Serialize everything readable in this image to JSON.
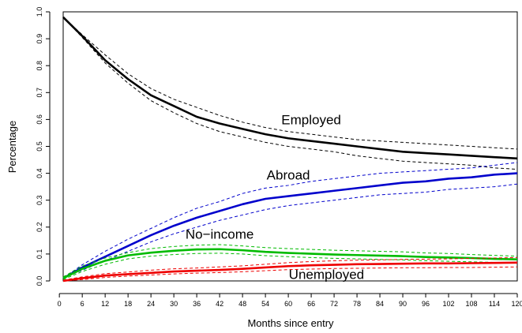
{
  "chart_data": {
    "type": "line",
    "title": "",
    "xlabel": "Months since entry",
    "ylabel": "Percentage",
    "xlim": [
      1,
      120
    ],
    "ylim": [
      0,
      1
    ],
    "x_ticks": [
      0,
      6,
      12,
      18,
      24,
      30,
      36,
      42,
      48,
      54,
      60,
      66,
      72,
      78,
      84,
      90,
      96,
      102,
      108,
      114,
      120
    ],
    "y_ticks": [
      "0.0",
      "0.1",
      "0.2",
      "0.3",
      "0.4",
      "0.5",
      "0.6",
      "0.7",
      "0.8",
      "0.9",
      "1.0"
    ],
    "grid": false,
    "legend": "none",
    "series": [
      {
        "name": "Employed",
        "color": "#000000",
        "points": [
          [
            1,
            0.98
          ],
          [
            6,
            0.91
          ],
          [
            12,
            0.82
          ],
          [
            18,
            0.75
          ],
          [
            24,
            0.69
          ],
          [
            30,
            0.65
          ],
          [
            36,
            0.61
          ],
          [
            42,
            0.585
          ],
          [
            48,
            0.565
          ],
          [
            54,
            0.545
          ],
          [
            60,
            0.53
          ],
          [
            66,
            0.52
          ],
          [
            72,
            0.51
          ],
          [
            78,
            0.5
          ],
          [
            84,
            0.49
          ],
          [
            90,
            0.48
          ],
          [
            96,
            0.475
          ],
          [
            102,
            0.47
          ],
          [
            108,
            0.465
          ],
          [
            114,
            0.46
          ],
          [
            120,
            0.455
          ]
        ],
        "upper": [
          [
            1,
            0.98
          ],
          [
            6,
            0.915
          ],
          [
            12,
            0.84
          ],
          [
            18,
            0.77
          ],
          [
            24,
            0.715
          ],
          [
            30,
            0.675
          ],
          [
            36,
            0.645
          ],
          [
            42,
            0.615
          ],
          [
            48,
            0.59
          ],
          [
            54,
            0.57
          ],
          [
            60,
            0.555
          ],
          [
            66,
            0.545
          ],
          [
            72,
            0.535
          ],
          [
            78,
            0.525
          ],
          [
            84,
            0.52
          ],
          [
            90,
            0.515
          ],
          [
            96,
            0.51
          ],
          [
            102,
            0.505
          ],
          [
            108,
            0.5
          ],
          [
            114,
            0.495
          ],
          [
            120,
            0.49
          ]
        ],
        "lower": [
          [
            1,
            0.98
          ],
          [
            6,
            0.905
          ],
          [
            12,
            0.81
          ],
          [
            18,
            0.735
          ],
          [
            24,
            0.67
          ],
          [
            30,
            0.625
          ],
          [
            36,
            0.585
          ],
          [
            42,
            0.555
          ],
          [
            48,
            0.535
          ],
          [
            54,
            0.515
          ],
          [
            60,
            0.5
          ],
          [
            66,
            0.49
          ],
          [
            72,
            0.48
          ],
          [
            78,
            0.465
          ],
          [
            84,
            0.455
          ],
          [
            90,
            0.445
          ],
          [
            96,
            0.44
          ],
          [
            102,
            0.435
          ],
          [
            108,
            0.43
          ],
          [
            114,
            0.42
          ],
          [
            120,
            0.415
          ]
        ]
      },
      {
        "name": "Abroad",
        "color": "#0000cc",
        "points": [
          [
            1,
            0.01
          ],
          [
            6,
            0.05
          ],
          [
            12,
            0.09
          ],
          [
            18,
            0.13
          ],
          [
            24,
            0.17
          ],
          [
            30,
            0.205
          ],
          [
            36,
            0.235
          ],
          [
            42,
            0.26
          ],
          [
            48,
            0.285
          ],
          [
            54,
            0.305
          ],
          [
            60,
            0.315
          ],
          [
            66,
            0.325
          ],
          [
            72,
            0.335
          ],
          [
            78,
            0.345
          ],
          [
            84,
            0.355
          ],
          [
            90,
            0.365
          ],
          [
            96,
            0.37
          ],
          [
            102,
            0.38
          ],
          [
            108,
            0.385
          ],
          [
            114,
            0.395
          ],
          [
            120,
            0.4
          ]
        ],
        "upper": [
          [
            1,
            0.01
          ],
          [
            6,
            0.06
          ],
          [
            12,
            0.11
          ],
          [
            18,
            0.155
          ],
          [
            24,
            0.195
          ],
          [
            30,
            0.235
          ],
          [
            36,
            0.27
          ],
          [
            42,
            0.295
          ],
          [
            48,
            0.325
          ],
          [
            54,
            0.345
          ],
          [
            60,
            0.355
          ],
          [
            66,
            0.37
          ],
          [
            72,
            0.38
          ],
          [
            78,
            0.39
          ],
          [
            84,
            0.4
          ],
          [
            90,
            0.405
          ],
          [
            96,
            0.41
          ],
          [
            102,
            0.415
          ],
          [
            108,
            0.42
          ],
          [
            114,
            0.43
          ],
          [
            120,
            0.44
          ]
        ],
        "lower": [
          [
            1,
            0.01
          ],
          [
            6,
            0.04
          ],
          [
            12,
            0.075
          ],
          [
            18,
            0.11
          ],
          [
            24,
            0.145
          ],
          [
            30,
            0.175
          ],
          [
            36,
            0.2
          ],
          [
            42,
            0.225
          ],
          [
            48,
            0.245
          ],
          [
            54,
            0.265
          ],
          [
            60,
            0.28
          ],
          [
            66,
            0.29
          ],
          [
            72,
            0.3
          ],
          [
            78,
            0.31
          ],
          [
            84,
            0.32
          ],
          [
            90,
            0.325
          ],
          [
            96,
            0.33
          ],
          [
            102,
            0.34
          ],
          [
            108,
            0.345
          ],
          [
            114,
            0.35
          ],
          [
            120,
            0.36
          ]
        ]
      },
      {
        "name": "No−income",
        "color": "#00bb00",
        "points": [
          [
            1,
            0.01
          ],
          [
            6,
            0.045
          ],
          [
            12,
            0.075
          ],
          [
            18,
            0.095
          ],
          [
            24,
            0.105
          ],
          [
            30,
            0.112
          ],
          [
            36,
            0.117
          ],
          [
            42,
            0.118
          ],
          [
            48,
            0.114
          ],
          [
            54,
            0.108
          ],
          [
            60,
            0.104
          ],
          [
            66,
            0.101
          ],
          [
            72,
            0.098
          ],
          [
            78,
            0.096
          ],
          [
            84,
            0.094
          ],
          [
            90,
            0.092
          ],
          [
            96,
            0.089
          ],
          [
            102,
            0.087
          ],
          [
            108,
            0.085
          ],
          [
            114,
            0.082
          ],
          [
            120,
            0.08
          ]
        ],
        "upper": [
          [
            1,
            0.015
          ],
          [
            6,
            0.055
          ],
          [
            12,
            0.085
          ],
          [
            18,
            0.105
          ],
          [
            24,
            0.12
          ],
          [
            30,
            0.128
          ],
          [
            36,
            0.133
          ],
          [
            42,
            0.135
          ],
          [
            48,
            0.13
          ],
          [
            54,
            0.124
          ],
          [
            60,
            0.12
          ],
          [
            66,
            0.117
          ],
          [
            72,
            0.114
          ],
          [
            78,
            0.112
          ],
          [
            84,
            0.11
          ],
          [
            90,
            0.108
          ],
          [
            96,
            0.104
          ],
          [
            102,
            0.102
          ],
          [
            108,
            0.098
          ],
          [
            114,
            0.095
          ],
          [
            120,
            0.092
          ]
        ],
        "lower": [
          [
            1,
            0.005
          ],
          [
            6,
            0.035
          ],
          [
            12,
            0.062
          ],
          [
            18,
            0.082
          ],
          [
            24,
            0.092
          ],
          [
            30,
            0.098
          ],
          [
            36,
            0.102
          ],
          [
            42,
            0.103
          ],
          [
            48,
            0.1
          ],
          [
            54,
            0.094
          ],
          [
            60,
            0.09
          ],
          [
            66,
            0.087
          ],
          [
            72,
            0.084
          ],
          [
            78,
            0.082
          ],
          [
            84,
            0.08
          ],
          [
            90,
            0.078
          ],
          [
            96,
            0.075
          ],
          [
            102,
            0.073
          ],
          [
            108,
            0.071
          ],
          [
            114,
            0.069
          ],
          [
            120,
            0.067
          ]
        ]
      },
      {
        "name": "Unemployed",
        "color": "#ee0000",
        "points": [
          [
            1,
            0.0
          ],
          [
            6,
            0.01
          ],
          [
            12,
            0.02
          ],
          [
            18,
            0.025
          ],
          [
            24,
            0.03
          ],
          [
            30,
            0.035
          ],
          [
            36,
            0.038
          ],
          [
            42,
            0.041
          ],
          [
            48,
            0.045
          ],
          [
            54,
            0.05
          ],
          [
            60,
            0.055
          ],
          [
            66,
            0.058
          ],
          [
            72,
            0.06
          ],
          [
            78,
            0.062
          ],
          [
            84,
            0.063
          ],
          [
            90,
            0.064
          ],
          [
            96,
            0.065
          ],
          [
            102,
            0.065
          ],
          [
            108,
            0.066
          ],
          [
            114,
            0.067
          ],
          [
            120,
            0.068
          ]
        ],
        "upper": [
          [
            1,
            0.003
          ],
          [
            6,
            0.015
          ],
          [
            12,
            0.027
          ],
          [
            18,
            0.033
          ],
          [
            24,
            0.04
          ],
          [
            30,
            0.045
          ],
          [
            36,
            0.048
          ],
          [
            42,
            0.052
          ],
          [
            48,
            0.056
          ],
          [
            54,
            0.062
          ],
          [
            60,
            0.068
          ],
          [
            66,
            0.072
          ],
          [
            72,
            0.075
          ],
          [
            78,
            0.077
          ],
          [
            84,
            0.078
          ],
          [
            90,
            0.08
          ],
          [
            96,
            0.081
          ],
          [
            102,
            0.082
          ],
          [
            108,
            0.084
          ],
          [
            114,
            0.085
          ],
          [
            120,
            0.087
          ]
        ],
        "lower": [
          [
            1,
            0.0
          ],
          [
            6,
            0.005
          ],
          [
            12,
            0.013
          ],
          [
            18,
            0.018
          ],
          [
            24,
            0.022
          ],
          [
            30,
            0.026
          ],
          [
            36,
            0.029
          ],
          [
            42,
            0.031
          ],
          [
            48,
            0.034
          ],
          [
            54,
            0.038
          ],
          [
            60,
            0.042
          ],
          [
            66,
            0.044
          ],
          [
            72,
            0.046
          ],
          [
            78,
            0.047
          ],
          [
            84,
            0.048
          ],
          [
            90,
            0.049
          ],
          [
            96,
            0.049
          ],
          [
            102,
            0.05
          ],
          [
            108,
            0.05
          ],
          [
            114,
            0.051
          ],
          [
            120,
            0.052
          ]
        ]
      }
    ],
    "annotations": [
      {
        "text": "Employed",
        "x": 66,
        "y": 0.595
      },
      {
        "text": "Abroad",
        "x": 60,
        "y": 0.39
      },
      {
        "text": "No−income",
        "x": 42,
        "y": 0.17
      },
      {
        "text": "Unemployed",
        "x": 70,
        "y": 0.02
      }
    ]
  }
}
